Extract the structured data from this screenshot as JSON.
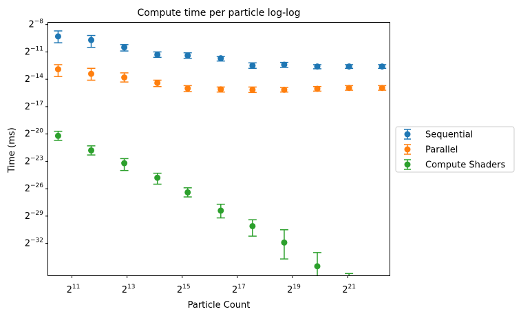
{
  "chart_data": {
    "type": "scatter",
    "title": "Compute time per particle log-log",
    "xlabel": "Particle Count",
    "ylabel": "Time (ms)",
    "xscale": "log2",
    "yscale": "log2",
    "x_exponent_range": [
      10.14,
      22.52
    ],
    "y_exponent_range": [
      -35.5,
      -7.8
    ],
    "x_ticks": [
      {
        "base": "2",
        "exp": "11",
        "e": 11
      },
      {
        "base": "2",
        "exp": "13",
        "e": 13
      },
      {
        "base": "2",
        "exp": "15",
        "e": 15
      },
      {
        "base": "2",
        "exp": "17",
        "e": 17
      },
      {
        "base": "2",
        "exp": "19",
        "e": 19
      },
      {
        "base": "2",
        "exp": "21",
        "e": 21
      }
    ],
    "y_ticks": [
      {
        "base": "2",
        "exp": "−8",
        "e": -8
      },
      {
        "base": "2",
        "exp": "−11",
        "e": -11
      },
      {
        "base": "2",
        "exp": "−14",
        "e": -14
      },
      {
        "base": "2",
        "exp": "−17",
        "e": -17
      },
      {
        "base": "2",
        "exp": "−20",
        "e": -20
      },
      {
        "base": "2",
        "exp": "−23",
        "e": -23
      },
      {
        "base": "2",
        "exp": "−26",
        "e": -26
      },
      {
        "base": "2",
        "exp": "−29",
        "e": -29
      },
      {
        "base": "2",
        "exp": "−32",
        "e": -32
      }
    ],
    "x_exponents": [
      10.5,
      11.7,
      12.9,
      14.1,
      15.2,
      16.4,
      17.55,
      18.7,
      19.9,
      21.05,
      22.25
    ],
    "grid": false,
    "legend_position": "right",
    "series": [
      {
        "name": "Sequential",
        "color": "#1f77b4",
        "y_exponents": [
          -9.3,
          -9.7,
          -10.5,
          -11.3,
          -11.4,
          -11.7,
          -12.5,
          -12.4,
          -12.6,
          -12.6,
          -12.6
        ],
        "err_low": [
          -10.0,
          -10.5,
          -10.9,
          -11.6,
          -11.7,
          -12.0,
          -12.8,
          -12.7,
          -12.85,
          -12.8,
          -12.8
        ],
        "err_high": [
          -8.7,
          -9.2,
          -10.2,
          -11.0,
          -11.1,
          -11.5,
          -12.2,
          -12.15,
          -12.4,
          -12.4,
          -12.4
        ]
      },
      {
        "name": "Parallel",
        "color": "#ff7f0e",
        "y_exponents": [
          -12.9,
          -13.4,
          -13.8,
          -14.4,
          -15.0,
          -15.1,
          -15.15,
          -15.15,
          -15.05,
          -14.95,
          -14.95
        ],
        "err_low": [
          -13.7,
          -14.1,
          -14.3,
          -14.8,
          -15.35,
          -15.4,
          -15.45,
          -15.4,
          -15.3,
          -15.2,
          -15.2
        ],
        "err_high": [
          -12.4,
          -12.8,
          -13.3,
          -14.1,
          -14.7,
          -14.85,
          -14.85,
          -14.9,
          -14.8,
          -14.7,
          -14.7
        ]
      },
      {
        "name": "Compute Shaders",
        "color": "#2ca02c",
        "y_exponents": [
          -20.2,
          -21.8,
          -23.2,
          -24.8,
          -26.4,
          -28.4,
          -30.1,
          -31.9,
          -34.5,
          -36.2,
          -37.9
        ],
        "err_low": [
          -20.7,
          -22.3,
          -24.0,
          -25.5,
          -26.9,
          -29.2,
          -31.2,
          -33.7,
          -37.4,
          -37.8,
          -38.4
        ],
        "err_high": [
          -19.7,
          -21.3,
          -22.7,
          -24.3,
          -25.9,
          -27.7,
          -29.4,
          -30.5,
          -33.0,
          -35.3,
          -37.5
        ]
      }
    ]
  }
}
